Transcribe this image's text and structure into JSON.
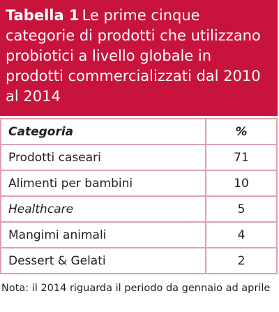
{
  "header": {
    "label": "Tabella 1",
    "title": "Le prime cinque categorie di prodotti che utilizzano probiotici a livello globale in prodotti commercializzati dal 2010 al 2014"
  },
  "table": {
    "columns": [
      "Categoria",
      "%"
    ],
    "rows": [
      [
        "Prodotti caseari",
        71
      ],
      [
        "Alimenti per bambini",
        10
      ],
      [
        "Healthcare",
        5
      ],
      [
        "Mangimi animali",
        4
      ],
      [
        "Dessert & Gelati",
        2
      ]
    ]
  },
  "note": "Nota: il 2014 riguarda il periodo da gennaio ad aprile"
}
